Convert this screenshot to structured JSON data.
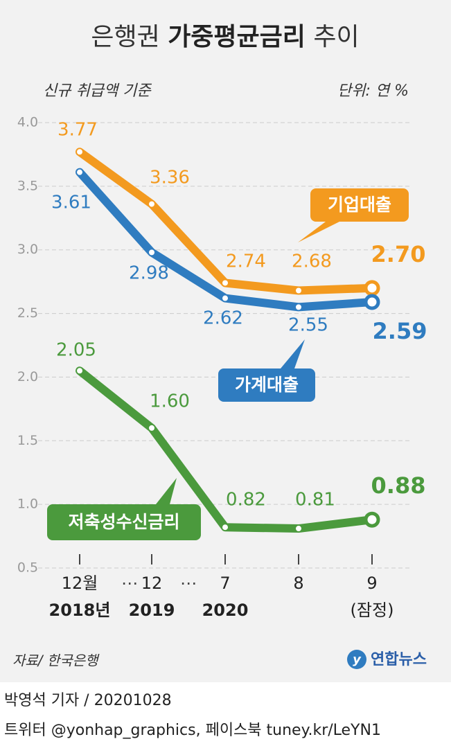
{
  "chart_data": {
    "type": "line",
    "title": [
      "은행권",
      "가중평균금리",
      "추이"
    ],
    "subtitle": "신규 취급액 기준",
    "unit": "단위: 연 %",
    "categories": [
      "12월",
      "12",
      "7",
      "8",
      "9"
    ],
    "category_sublabels": [
      "2018년",
      "2019",
      "2020",
      null,
      "(잠정)"
    ],
    "ylim": [
      0.5,
      4.0
    ],
    "yticks": [
      0.5,
      {
        "value": 1,
        "label": "1.0"
      },
      1.5,
      {
        "value": 2,
        "label": "2.0"
      },
      2.5,
      {
        "value": 3,
        "label": "3.0"
      },
      3.5,
      {
        "value": 4,
        "label": "4.0"
      }
    ],
    "grid": true,
    "series": [
      {
        "name": "기업대출",
        "color": "#f39a1f",
        "values": [
          3.77,
          3.36,
          2.74,
          2.68,
          2.7
        ],
        "value_labels": [
          "3.77",
          "3.36",
          "2.74",
          "2.68",
          "2.70"
        ]
      },
      {
        "name": "가계대출",
        "color": "#2f7cc0",
        "values": [
          3.61,
          2.98,
          2.62,
          2.55,
          2.59
        ],
        "value_labels": [
          "3.61",
          "2.98",
          "2.62",
          "2.55",
          "2.59"
        ]
      },
      {
        "name": "저축성수신금리",
        "color": "#4b9a3d",
        "values": [
          2.05,
          1.6,
          0.82,
          0.81,
          0.88
        ],
        "value_labels": [
          "2.05",
          "1.60",
          "0.82",
          "0.81",
          "0.88"
        ]
      }
    ],
    "source": "자료/ 한국은행",
    "logo": "연합뉴스"
  },
  "footer": {
    "byline": "박영석 기자 /  20201028",
    "social": "트위터 @yonhap_graphics, 페이스북 tuney.kr/LeYN1"
  }
}
